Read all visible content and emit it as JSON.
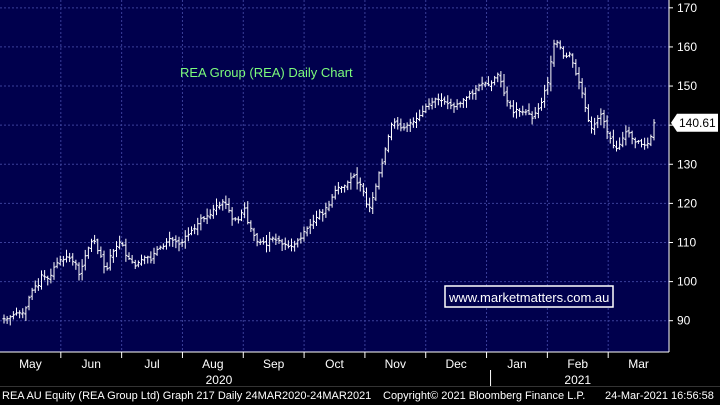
{
  "chart_data": {
    "type": "ohlc",
    "title": "REA Group (REA) Daily Chart",
    "watermark": "www.marketmatters.com.au",
    "last_price_label": "140.61",
    "last_price": 140.61,
    "ylim": [
      82,
      172
    ],
    "yticks": [
      90,
      100,
      110,
      120,
      130,
      140,
      150,
      160,
      170
    ],
    "month_labels": [
      "May",
      "Jun",
      "Jul",
      "Aug",
      "Sep",
      "Oct",
      "Nov",
      "Dec",
      "Jan",
      "Feb",
      "Mar"
    ],
    "year_labels": [
      "2020",
      "2021"
    ],
    "grid": true,
    "background_color": "#00004d",
    "grid_color": "#3a3f9a",
    "bar_color": "#ffffff",
    "title_color": "#7cfc7c",
    "close_series": [
      90.5,
      90.5,
      91.0,
      91.5,
      92.0,
      92.0,
      92.0,
      93.3,
      95.9,
      97.8,
      98.9,
      99.0,
      101.7,
      101.2,
      100.8,
      101.6,
      103.7,
      104.8,
      105.6,
      105.6,
      106.3,
      106.0,
      105.1,
      104.5,
      101.8,
      103.9,
      106.6,
      108.6,
      110.3,
      110.3,
      107.9,
      106.5,
      103.8,
      103.3,
      106.6,
      107.8,
      109.0,
      110.1,
      109.3,
      106.7,
      105.9,
      105.0,
      104.0,
      104.9,
      105.6,
      106.2,
      106.3,
      105.5,
      107.2,
      108.2,
      108.8,
      109.0,
      110.1,
      111.0,
      110.6,
      110.3,
      109.6,
      110.0,
      111.6,
      112.0,
      113.1,
      113.5,
      114.8,
      116.2,
      116.1,
      116.8,
      117.1,
      118.5,
      119.4,
      119.5,
      120.4,
      119.8,
      118.2,
      116.0,
      116.0,
      115.8,
      117.6,
      118.8,
      115.1,
      113.6,
      111.8,
      110.2,
      110.1,
      110.1,
      109.3,
      110.9,
      111.1,
      110.6,
      110.5,
      109.6,
      109.5,
      109.0,
      109.0,
      109.6,
      110.6,
      111.1,
      112.8,
      113.6,
      114.5,
      115.4,
      116.4,
      117.8,
      117.2,
      118.9,
      119.6,
      121.6,
      123.3,
      124.1,
      124.1,
      124.5,
      125.4,
      126.5,
      127.1,
      125.2,
      124.8,
      123.1,
      119.8,
      119.0,
      121.5,
      124.4,
      127.8,
      130.3,
      133.9,
      137.1,
      140.2,
      140.8,
      140.0,
      139.3,
      139.3,
      140.0,
      140.6,
      140.9,
      141.7,
      142.5,
      143.5,
      144.8,
      145.4,
      145.9,
      146.7,
      146.6,
      146.3,
      146.0,
      145.5,
      145.0,
      144.7,
      145.4,
      145.6,
      146.5,
      147.1,
      148.1,
      148.0,
      149.3,
      150.1,
      150.7,
      150.8,
      150.3,
      150.8,
      152.1,
      153.0,
      151.1,
      148.2,
      146.2,
      144.9,
      143.2,
      144.0,
      143.5,
      143.4,
      143.4,
      142.9,
      141.8,
      143.1,
      144.2,
      145.8,
      148.8,
      150.9,
      156.2,
      160.8,
      161.2,
      159.9,
      157.7,
      157.6,
      158.2,
      155.9,
      153.1,
      151.0,
      148.2,
      144.5,
      141.2,
      139.2,
      140.3,
      141.7,
      142.8,
      140.9,
      138.3,
      136.6,
      134.8,
      134.0,
      135.1,
      136.7,
      138.3,
      138.0,
      136.6,
      135.7,
      135.9,
      135.1,
      134.9,
      135.3,
      137.1,
      140.6
    ]
  },
  "footer": {
    "left": "REA AU Equity (REA Group Ltd) Graph 217  Daily 24MAR2020-24MAR2021",
    "middle": "Copyright© 2021 Bloomberg Finance L.P.",
    "right": "24-Mar-2021 16:56:58"
  }
}
